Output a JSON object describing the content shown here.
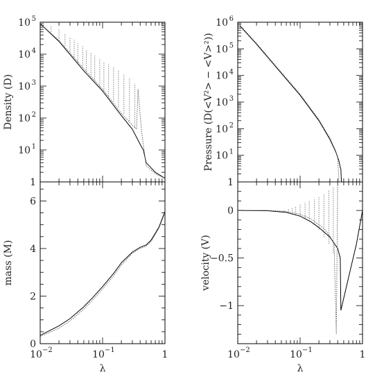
{
  "chart_data": [
    {
      "type": "line",
      "panel": "density",
      "ylabel": "Density (D)",
      "xscale": "log",
      "yscale": "log",
      "xlim": [
        0.01,
        1
      ],
      "ylim": [
        1,
        100000
      ],
      "yticks": [
        {
          "v": 1,
          "label": "1",
          "exp": ""
        },
        {
          "v": 10,
          "label": "10",
          "exp": "1"
        },
        {
          "v": 100,
          "label": "10",
          "exp": "2"
        },
        {
          "v": 1000,
          "label": "10",
          "exp": "3"
        },
        {
          "v": 10000,
          "label": "10",
          "exp": "4"
        },
        {
          "v": 100000,
          "label": "10",
          "exp": "5"
        }
      ],
      "grid": false,
      "series": [
        {
          "style": "solid",
          "x": [
            0.01,
            0.02,
            0.05,
            0.1,
            0.2,
            0.3,
            0.4,
            0.45,
            0.5,
            0.7,
            1.0
          ],
          "y": [
            90000,
            25000,
            3000,
            700,
            120,
            45,
            15,
            10,
            4,
            2,
            1.3
          ]
        },
        {
          "style": "dotted",
          "x": [
            0.01,
            0.02,
            0.05,
            0.1,
            0.2,
            0.3,
            0.35,
            0.37,
            0.42,
            0.5,
            0.7,
            1.0
          ],
          "y": [
            90000,
            27000,
            3500,
            800,
            140,
            60,
            45,
            800,
            40,
            3.2,
            1.8,
            1.3
          ]
        }
      ],
      "spikes": [
        {
          "x": 0.015,
          "y0": 50000,
          "y1": 80000
        },
        {
          "x": 0.02,
          "y0": 30000,
          "y1": 60000
        },
        {
          "x": 0.025,
          "y0": 18000,
          "y1": 45000
        },
        {
          "x": 0.03,
          "y0": 12000,
          "y1": 35000
        },
        {
          "x": 0.035,
          "y0": 8000,
          "y1": 28000
        },
        {
          "x": 0.04,
          "y0": 5500,
          "y1": 22000
        },
        {
          "x": 0.048,
          "y0": 3800,
          "y1": 18000
        },
        {
          "x": 0.055,
          "y0": 2700,
          "y1": 14000
        },
        {
          "x": 0.065,
          "y0": 1900,
          "y1": 11000
        },
        {
          "x": 0.075,
          "y0": 1400,
          "y1": 9000
        },
        {
          "x": 0.09,
          "y0": 950,
          "y1": 7000
        },
        {
          "x": 0.105,
          "y0": 700,
          "y1": 5800
        },
        {
          "x": 0.125,
          "y0": 480,
          "y1": 4800
        },
        {
          "x": 0.15,
          "y0": 330,
          "y1": 4000
        },
        {
          "x": 0.18,
          "y0": 220,
          "y1": 3200
        },
        {
          "x": 0.22,
          "y0": 140,
          "y1": 2400
        },
        {
          "x": 0.27,
          "y0": 80,
          "y1": 1800
        },
        {
          "x": 0.33,
          "y0": 50,
          "y1": 1200
        }
      ]
    },
    {
      "type": "line",
      "panel": "pressure",
      "ylabel": "Pressure (D(<V²> − <V>²))",
      "xscale": "log",
      "yscale": "log",
      "xlim": [
        0.01,
        1
      ],
      "ylim": [
        1,
        1000000
      ],
      "yticks": [
        {
          "v": 1,
          "label": "1",
          "exp": ""
        },
        {
          "v": 10,
          "label": "10",
          "exp": "1"
        },
        {
          "v": 100,
          "label": "10",
          "exp": "2"
        },
        {
          "v": 1000,
          "label": "10",
          "exp": "3"
        },
        {
          "v": 10000,
          "label": "10",
          "exp": "4"
        },
        {
          "v": 100000,
          "label": "10",
          "exp": "5"
        },
        {
          "v": 1000000,
          "label": "10",
          "exp": "6"
        }
      ],
      "grid": false,
      "series": [
        {
          "style": "solid",
          "x": [
            0.011,
            0.02,
            0.05,
            0.1,
            0.2,
            0.3,
            0.38,
            0.42,
            0.44,
            0.45,
            0.46
          ],
          "y": [
            700000,
            150000,
            12000,
            1800,
            200,
            40,
            12,
            6,
            3.5,
            3.0,
            1.0
          ]
        },
        {
          "style": "dotted",
          "x": [
            0.011,
            0.02,
            0.05,
            0.1,
            0.2,
            0.3,
            0.37,
            0.4,
            0.42
          ],
          "y": [
            750000,
            160000,
            13000,
            2000,
            220,
            45,
            15,
            8,
            1.0
          ]
        }
      ]
    },
    {
      "type": "line",
      "panel": "mass",
      "ylabel": "mass (M)",
      "xlabel": "λ",
      "xscale": "log",
      "yscale": "linear",
      "xlim": [
        0.01,
        1
      ],
      "ylim": [
        0,
        6.8
      ],
      "xticks": [
        {
          "v": 0.01,
          "label": "10",
          "exp": "−2"
        },
        {
          "v": 0.1,
          "label": "10",
          "exp": "−1"
        },
        {
          "v": 1,
          "label": "1",
          "exp": ""
        }
      ],
      "yticks": [
        {
          "v": 0,
          "label": "0"
        },
        {
          "v": 2,
          "label": "2"
        },
        {
          "v": 4,
          "label": "4"
        },
        {
          "v": 6,
          "label": "6"
        }
      ],
      "grid": false,
      "series": [
        {
          "style": "solid",
          "x": [
            0.01,
            0.02,
            0.03,
            0.05,
            0.07,
            0.1,
            0.15,
            0.2,
            0.3,
            0.4,
            0.5,
            0.6,
            0.8,
            1.0
          ],
          "y": [
            0.35,
            0.75,
            1.05,
            1.55,
            1.95,
            2.4,
            2.95,
            3.4,
            3.85,
            4.05,
            4.15,
            4.35,
            4.9,
            5.55
          ]
        },
        {
          "style": "dotted",
          "x": [
            0.01,
            0.02,
            0.03,
            0.05,
            0.07,
            0.1,
            0.15,
            0.2,
            0.3,
            0.4,
            0.5,
            0.6,
            0.8,
            1.0
          ],
          "y": [
            0.3,
            0.65,
            0.95,
            1.45,
            1.85,
            2.3,
            2.85,
            3.3,
            3.8,
            4.0,
            4.1,
            4.3,
            4.85,
            5.5
          ]
        }
      ]
    },
    {
      "type": "line",
      "panel": "velocity",
      "ylabel": "velocity (V)",
      "xlabel": "λ",
      "xscale": "log",
      "yscale": "linear",
      "xlim": [
        0.01,
        1
      ],
      "ylim": [
        -1.4,
        0.3
      ],
      "xticks": [
        {
          "v": 0.01,
          "label": "10",
          "exp": "−2"
        },
        {
          "v": 0.1,
          "label": "10",
          "exp": "−1"
        },
        {
          "v": 1,
          "label": "1",
          "exp": ""
        }
      ],
      "yticks": [
        {
          "v": 0,
          "label": "0"
        },
        {
          "v": -0.5,
          "label": "−0.5"
        },
        {
          "v": -1,
          "label": "−1"
        }
      ],
      "grid": false,
      "series": [
        {
          "style": "solid",
          "x": [
            0.01,
            0.03,
            0.06,
            0.1,
            0.15,
            0.2,
            0.3,
            0.4,
            0.44,
            0.45,
            0.6,
            0.8,
            1.0
          ],
          "y": [
            0,
            -0.003,
            -0.02,
            -0.06,
            -0.12,
            -0.18,
            -0.28,
            -0.4,
            -0.5,
            -1.05,
            -0.7,
            -0.35,
            0
          ]
        },
        {
          "style": "dotted",
          "x": [
            0.01,
            0.03,
            0.06,
            0.1,
            0.15,
            0.2,
            0.25,
            0.3,
            0.35,
            0.38,
            0.4
          ],
          "y": [
            0,
            0,
            -0.01,
            -0.04,
            -0.09,
            -0.15,
            -0.2,
            -0.27,
            -0.35,
            -1.3,
            0.3
          ]
        }
      ],
      "spikes": [
        {
          "x": 0.055,
          "y0": -0.01,
          "y1": 0.01
        },
        {
          "x": 0.065,
          "y0": -0.02,
          "y1": 0.02
        },
        {
          "x": 0.075,
          "y0": -0.03,
          "y1": 0.03
        },
        {
          "x": 0.085,
          "y0": -0.04,
          "y1": 0.04
        },
        {
          "x": 0.1,
          "y0": -0.06,
          "y1": 0.06
        },
        {
          "x": 0.12,
          "y0": -0.08,
          "y1": 0.08
        },
        {
          "x": 0.14,
          "y0": -0.11,
          "y1": 0.1
        },
        {
          "x": 0.17,
          "y0": -0.15,
          "y1": 0.12
        },
        {
          "x": 0.2,
          "y0": -0.2,
          "y1": 0.15
        },
        {
          "x": 0.24,
          "y0": -0.28,
          "y1": 0.18
        },
        {
          "x": 0.29,
          "y0": -0.35,
          "y1": 0.22
        },
        {
          "x": 0.34,
          "y0": -0.45,
          "y1": 0.25
        }
      ]
    }
  ]
}
